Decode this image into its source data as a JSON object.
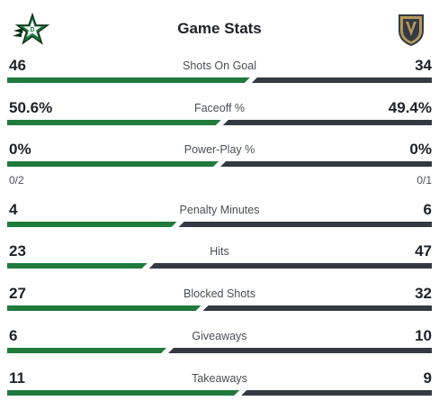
{
  "header": {
    "title": "Game Stats",
    "home_logo": "dallas-stars-logo",
    "away_logo": "vegas-golden-knights-logo"
  },
  "colors": {
    "home": "#1f7a3c",
    "away": "#333a43"
  },
  "stats": [
    {
      "label": "Shots On Goal",
      "home": "46",
      "away": "34",
      "home_share": 0.575
    },
    {
      "label": "Faceoff %",
      "home": "50.6%",
      "away": "49.4%",
      "home_share": 0.506
    },
    {
      "label": "Power-Play %",
      "home": "0%",
      "away": "0%",
      "home_share": 0.5,
      "home_sub": "0/2",
      "away_sub": "0/1"
    },
    {
      "label": "Penalty Minutes",
      "home": "4",
      "away": "6",
      "home_share": 0.4
    },
    {
      "label": "Hits",
      "home": "23",
      "away": "47",
      "home_share": 0.329
    },
    {
      "label": "Blocked Shots",
      "home": "27",
      "away": "32",
      "home_share": 0.458
    },
    {
      "label": "Giveaways",
      "home": "6",
      "away": "10",
      "home_share": 0.375
    },
    {
      "label": "Takeaways",
      "home": "11",
      "away": "9",
      "home_share": 0.55
    }
  ]
}
